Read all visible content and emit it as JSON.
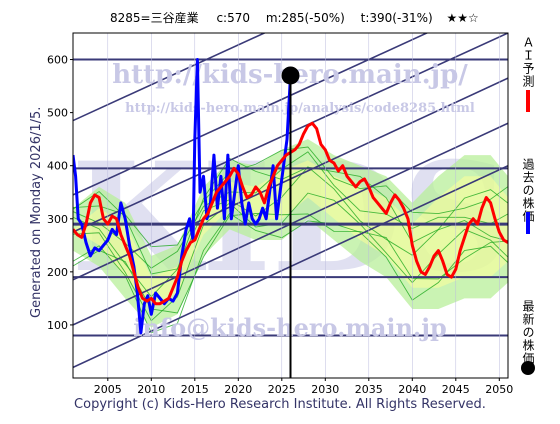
{
  "header": {
    "ticker": "8285=三谷産業",
    "current": "c:570",
    "m_value": "m:285(-50%)",
    "t_value": "t:390(-31%)",
    "stars": "★★☆"
  },
  "side_label": "Generated on Monday 2026/1/5.",
  "legend": [
    {
      "label": "ＡＩ予測",
      "color": "#ff0000"
    },
    {
      "label": "過去の株価",
      "color": "#0000ff"
    },
    {
      "label": "最新の株価",
      "color": "#000000"
    }
  ],
  "watermarks": {
    "url_top": "http://kids-hero.main.jp/",
    "url_mid": "http://kids-hero.main.jp/analysis/code8285.html",
    "email": "info@kids-hero.main.jp",
    "big": "KIDS"
  },
  "footer": "Copyright (c) Kids-Hero Research Institute. All Rights Reserved.",
  "colors": {
    "grid": "#3a3a78",
    "prediction": "#ff0000",
    "past": "#0000ff",
    "band_fill": "#b8ef9a",
    "band_yellow": "#ffff99",
    "band_line": "#22aa22",
    "watermark": "#c8c8e6"
  },
  "chart_data": {
    "type": "line",
    "xlim": [
      2001,
      2051
    ],
    "ylim": [
      0,
      650
    ],
    "x_ticks": [
      "2005",
      "2010",
      "2015",
      "2020",
      "2025",
      "2030",
      "2035",
      "2040",
      "2045",
      "2050"
    ],
    "y_ticks": [
      "100",
      "200",
      "300",
      "400",
      "500",
      "600"
    ],
    "horizontal_levels": [
      80,
      190,
      290,
      395,
      600
    ],
    "latest_marker": {
      "x": 2026.0,
      "y": 570
    },
    "current_year_line": 2026.0,
    "channel_lines": [
      {
        "from": [
          2001,
          20
        ],
        "to": [
          2051,
          400
        ]
      },
      {
        "from": [
          2001,
          100
        ],
        "to": [
          2051,
          480
        ]
      },
      {
        "from": [
          2001,
          185
        ],
        "to": [
          2051,
          565
        ]
      },
      {
        "from": [
          2001,
          275
        ],
        "to": [
          2051,
          650
        ]
      },
      {
        "from": [
          2001,
          345
        ],
        "to": [
          2051,
          720
        ]
      },
      {
        "from": [
          2001,
          485
        ],
        "to": [
          2051,
          860
        ]
      }
    ],
    "series": [
      {
        "name": "過去の株価",
        "x": [
          2001.0,
          2001.3,
          2001.6,
          2002.0,
          2002.5,
          2003.0,
          2003.5,
          2004.0,
          2004.5,
          2005.0,
          2005.5,
          2006.0,
          2006.5,
          2007.0,
          2007.5,
          2008.0,
          2008.4,
          2008.8,
          2009.2,
          2009.6,
          2010.0,
          2010.5,
          2011.0,
          2011.5,
          2012.0,
          2012.5,
          2013.0,
          2013.5,
          2014.0,
          2014.4,
          2014.8,
          2015.0,
          2015.3,
          2015.6,
          2016.0,
          2016.4,
          2016.8,
          2017.2,
          2017.6,
          2018.0,
          2018.4,
          2018.8,
          2019.2,
          2019.6,
          2020.0,
          2020.4,
          2020.8,
          2021.2,
          2021.6,
          2022.0,
          2022.4,
          2022.8,
          2023.2,
          2023.6,
          2024.0,
          2024.4,
          2024.8,
          2025.2,
          2025.6,
          2026.0
        ],
        "y": [
          420,
          380,
          300,
          290,
          255,
          230,
          245,
          240,
          250,
          260,
          280,
          270,
          330,
          300,
          250,
          210,
          160,
          85,
          140,
          155,
          120,
          160,
          150,
          140,
          150,
          145,
          160,
          230,
          280,
          300,
          260,
          450,
          600,
          350,
          380,
          300,
          330,
          420,
          320,
          380,
          300,
          420,
          300,
          350,
          400,
          330,
          290,
          330,
          300,
          290,
          300,
          320,
          300,
          350,
          400,
          300,
          350,
          400,
          450,
          570
        ]
      },
      {
        "name": "ＡＩ予測",
        "x": [
          2001.0,
          2001.5,
          2002.0,
          2002.5,
          2003.0,
          2003.5,
          2004.0,
          2004.5,
          2005.0,
          2005.5,
          2006.0,
          2006.5,
          2007.0,
          2007.5,
          2008.0,
          2008.5,
          2009.0,
          2009.5,
          2010.0,
          2010.5,
          2011.0,
          2011.5,
          2012.0,
          2012.5,
          2013.0,
          2013.5,
          2014.0,
          2014.5,
          2015.0,
          2015.5,
          2016.0,
          2016.5,
          2017.0,
          2017.5,
          2018.0,
          2018.5,
          2019.0,
          2019.5,
          2020.0,
          2020.5,
          2021.0,
          2021.5,
          2022.0,
          2022.5,
          2023.0,
          2023.5,
          2024.0,
          2024.5,
          2025.0,
          2025.5,
          2026.0,
          2026.5,
          2027.0,
          2027.5,
          2028.0,
          2028.5,
          2029.0,
          2029.5,
          2030.0,
          2030.5,
          2031.0,
          2031.5,
          2032.0,
          2032.5,
          2033.0,
          2033.5,
          2034.0,
          2034.5,
          2035.0,
          2035.5,
          2036.0,
          2036.5,
          2037.0,
          2037.5,
          2038.0,
          2038.5,
          2039.0,
          2039.5,
          2040.0,
          2040.5,
          2041.0,
          2041.5,
          2042.0,
          2042.5,
          2043.0,
          2043.5,
          2044.0,
          2044.5,
          2045.0,
          2045.5,
          2046.0,
          2046.5,
          2047.0,
          2047.5,
          2048.0,
          2048.5,
          2049.0,
          2049.5,
          2050.0,
          2050.5,
          2051.0
        ],
        "y": [
          280,
          270,
          265,
          290,
          330,
          345,
          340,
          300,
          290,
          305,
          300,
          270,
          250,
          230,
          200,
          170,
          150,
          145,
          150,
          140,
          140,
          145,
          150,
          170,
          190,
          220,
          240,
          255,
          260,
          280,
          300,
          310,
          330,
          350,
          360,
          370,
          380,
          395,
          385,
          360,
          340,
          345,
          360,
          350,
          330,
          360,
          380,
          400,
          410,
          420,
          425,
          430,
          440,
          460,
          475,
          480,
          470,
          440,
          430,
          410,
          405,
          390,
          400,
          380,
          370,
          360,
          370,
          375,
          360,
          340,
          330,
          320,
          310,
          330,
          345,
          335,
          320,
          300,
          250,
          220,
          200,
          195,
          210,
          230,
          240,
          220,
          195,
          190,
          205,
          240,
          265,
          290,
          300,
          290,
          320,
          340,
          330,
          300,
          275,
          260,
          255
        ]
      }
    ],
    "band_sample": {
      "x": [
        2001,
        2004,
        2007,
        2010,
        2013,
        2016,
        2019,
        2022,
        2025,
        2028,
        2031,
        2034,
        2037,
        2040,
        2043,
        2046,
        2049,
        2051
      ],
      "upper": [
        320,
        360,
        330,
        230,
        250,
        360,
        410,
        400,
        430,
        450,
        420,
        400,
        380,
        330,
        380,
        420,
        420,
        380
      ],
      "lower": [
        240,
        210,
        150,
        95,
        120,
        230,
        280,
        260,
        260,
        300,
        260,
        220,
        190,
        130,
        130,
        150,
        150,
        180
      ]
    }
  }
}
